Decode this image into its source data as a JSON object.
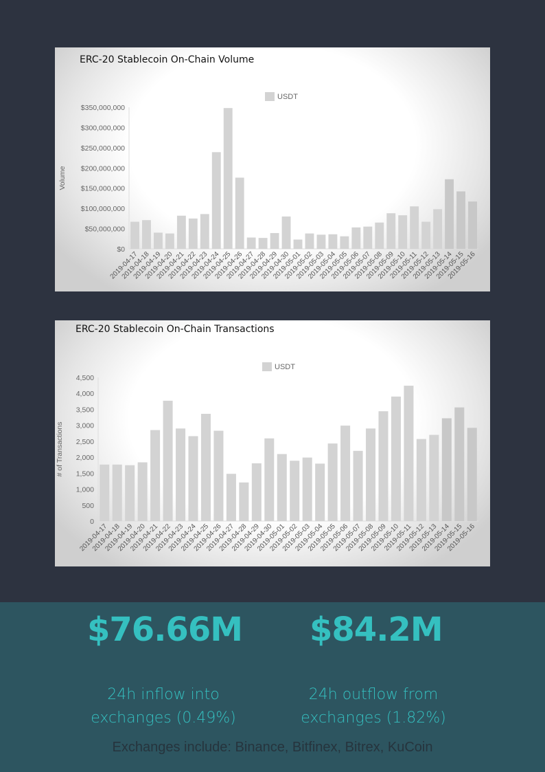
{
  "chart_data": [
    {
      "type": "bar",
      "title": "ERC-20 Stablecoin On-Chain Volume",
      "xlabel": "",
      "ylabel": "Volume",
      "ylim": [
        0,
        350000000
      ],
      "yticks": [
        "$0",
        "$50,000,000",
        "$100,000,000",
        "$150,000,000",
        "$200,000,000",
        "$250,000,000",
        "$300,000,000",
        "$350,000,000"
      ],
      "legend": "top",
      "grid": false,
      "bar_color": "#d3d3d3",
      "categories": [
        "2019-04-17",
        "2019-04-18",
        "2019-04-19",
        "2019-04-20",
        "2019-04-21",
        "2019-04-22",
        "2019-04-23",
        "2019-04-24",
        "2019-04-25",
        "2019-04-26",
        "2019-04-27",
        "2019-04-28",
        "2019-04-29",
        "2019-04-30",
        "2019-05-01",
        "2019-05-02",
        "2019-05-03",
        "2019-05-04",
        "2019-05-05",
        "2019-05-06",
        "2019-05-07",
        "2019-05-08",
        "2019-05-09",
        "2019-05-10",
        "2019-05-11",
        "2019-05-12",
        "2019-05-13",
        "2019-05-14",
        "2019-05-15",
        "2019-05-16"
      ],
      "series": [
        {
          "name": "USDT",
          "values": [
            67000000,
            71000000,
            40000000,
            38000000,
            82000000,
            75000000,
            86000000,
            239000000,
            348000000,
            176000000,
            28000000,
            27000000,
            39000000,
            80000000,
            23000000,
            38000000,
            35000000,
            36000000,
            31000000,
            53000000,
            55000000,
            65000000,
            88000000,
            83000000,
            105000000,
            67000000,
            98000000,
            172000000,
            142000000,
            117000000
          ]
        }
      ]
    },
    {
      "type": "bar",
      "title": "ERC-20 Stablecoin On-Chain Transactions",
      "xlabel": "",
      "ylabel": "# of Transactions",
      "ylim": [
        0,
        4500
      ],
      "yticks": [
        "0",
        "500",
        "1,000",
        "1,500",
        "2,000",
        "2,500",
        "3,000",
        "3,500",
        "4,000",
        "4,500"
      ],
      "legend": "top",
      "grid": false,
      "bar_color": "#d3d3d3",
      "categories": [
        "2019-04-17",
        "2019-04-18",
        "2019-04-19",
        "2019-04-20",
        "2019-04-21",
        "2019-04-22",
        "2019-04-23",
        "2019-04-24",
        "2019-04-25",
        "2019-04-26",
        "2019-04-27",
        "2019-04-28",
        "2019-04-29",
        "2019-04-30",
        "2019-05-01",
        "2019-05-02",
        "2019-05-03",
        "2019-05-04",
        "2019-05-05",
        "2019-05-06",
        "2019-05-07",
        "2019-05-08",
        "2019-05-09",
        "2019-05-10",
        "2019-05-11",
        "2019-05-12",
        "2019-05-13",
        "2019-05-14",
        "2019-05-15",
        "2019-05-16"
      ],
      "series": [
        {
          "name": "USDT",
          "values": [
            1770,
            1770,
            1750,
            1840,
            2850,
            3770,
            2900,
            2660,
            3360,
            2830,
            1480,
            1210,
            1810,
            2590,
            2100,
            1890,
            1990,
            1800,
            2430,
            2990,
            2200,
            2900,
            3440,
            3900,
            4240,
            2570,
            2700,
            3220,
            3560,
            2920
          ]
        }
      ]
    }
  ],
  "stats": {
    "inflow_value": "$76.66M",
    "inflow_label_1": "24h inflow into",
    "inflow_label_2": "exchanges (0.49%)",
    "outflow_value": "$84.2M",
    "outflow_label_1": "24h outflow from",
    "outflow_label_2": "exchanges  (1.82%)",
    "footnote": "Exchanges include: Binance, Bitfinex, Bitrex, KuCoin"
  },
  "colors": {
    "background": "#2d3340",
    "band": "#2d5560",
    "accent": "#35c0c0"
  }
}
